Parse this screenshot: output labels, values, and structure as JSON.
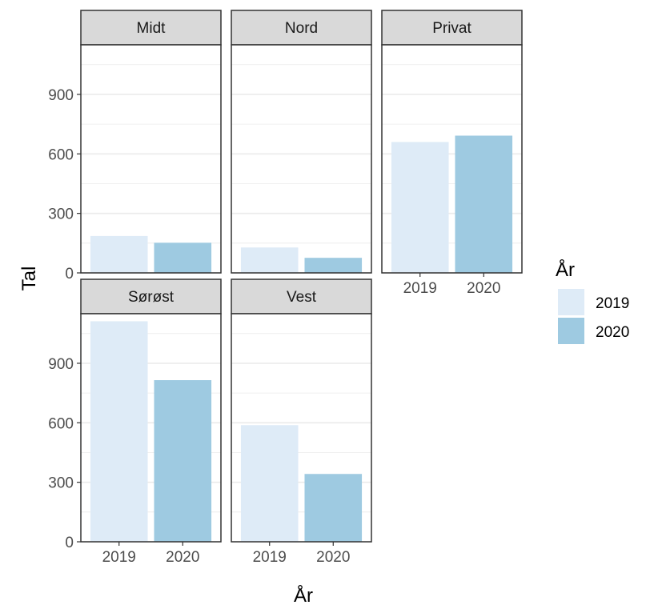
{
  "chart_data": {
    "type": "bar",
    "facet_by": "region",
    "ylabel": "Tal",
    "xlabel": "År",
    "categories": [
      "2019",
      "2020"
    ],
    "y_ticks": [
      0,
      300,
      600,
      900
    ],
    "ylim": [
      0,
      1150
    ],
    "grid": true,
    "legend": {
      "title": "År",
      "position": "right",
      "entries": [
        {
          "label": "2019",
          "color": "#deebf7"
        },
        {
          "label": "2020",
          "color": "#9ecae1"
        }
      ]
    },
    "panels": [
      {
        "name": "Midt",
        "values": [
          186,
          152
        ]
      },
      {
        "name": "Nord",
        "values": [
          128,
          76
        ]
      },
      {
        "name": "Privat",
        "values": [
          660,
          692
        ]
      },
      {
        "name": "Sørøst",
        "values": [
          1112,
          815
        ]
      },
      {
        "name": "Vest",
        "values": [
          588,
          342
        ]
      }
    ]
  }
}
